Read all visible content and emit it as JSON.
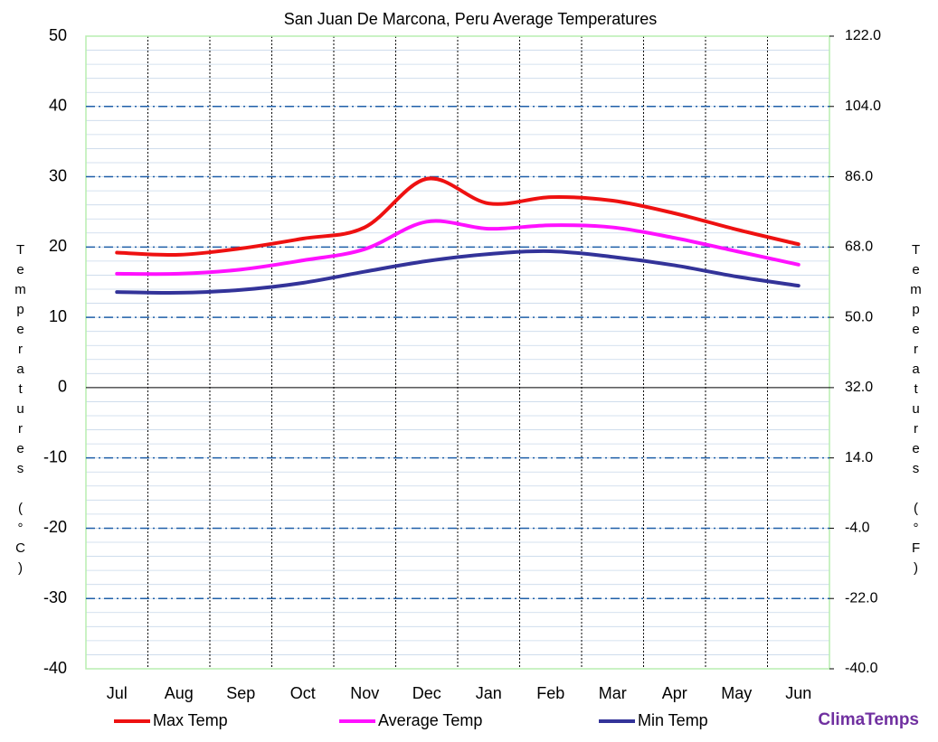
{
  "chart_data": {
    "type": "line",
    "title": "San Juan De Marcona, Peru Average Temperatures",
    "y_label": "Temperatures (°C)",
    "y2_label": "Temperatures (°F)",
    "brand": "ClimaTemps",
    "categories": [
      "Jul",
      "Aug",
      "Sep",
      "Oct",
      "Nov",
      "Dec",
      "Jan",
      "Feb",
      "Mar",
      "Apr",
      "May",
      "Jun"
    ],
    "ylim": [
      -40,
      50
    ],
    "yticks": [
      -40,
      -30,
      -20,
      -10,
      0,
      10,
      20,
      30,
      40,
      50
    ],
    "y2lim": [
      -40,
      122
    ],
    "y2ticks": [
      {
        "value": -40,
        "label": "-40.0"
      },
      {
        "value": -22,
        "label": "-22.0"
      },
      {
        "value": -4,
        "label": "-4.0"
      },
      {
        "value": 14,
        "label": "14.0"
      },
      {
        "value": 32,
        "label": "32.0"
      },
      {
        "value": 50,
        "label": "50.0"
      },
      {
        "value": 68,
        "label": "68.0"
      },
      {
        "value": 86,
        "label": "86.0"
      },
      {
        "value": 104,
        "label": "104.0"
      },
      {
        "value": 122,
        "label": "122.0"
      }
    ],
    "grid": true,
    "legend": "bottom",
    "series": [
      {
        "name": "Max Temp",
        "color": "#ee1111",
        "values": [
          19.2,
          18.9,
          19.8,
          21.2,
          22.8,
          29.7,
          26.2,
          27.1,
          26.6,
          24.8,
          22.5,
          20.4
        ]
      },
      {
        "name": "Average Temp",
        "color": "#ff11ff",
        "values": [
          16.2,
          16.2,
          16.8,
          18.1,
          19.7,
          23.6,
          22.6,
          23.1,
          22.8,
          21.3,
          19.4,
          17.5
        ]
      },
      {
        "name": "Min Temp",
        "color": "#333399",
        "values": [
          13.6,
          13.5,
          13.9,
          14.9,
          16.5,
          18.0,
          19.0,
          19.4,
          18.6,
          17.4,
          15.8,
          14.5
        ]
      }
    ]
  }
}
